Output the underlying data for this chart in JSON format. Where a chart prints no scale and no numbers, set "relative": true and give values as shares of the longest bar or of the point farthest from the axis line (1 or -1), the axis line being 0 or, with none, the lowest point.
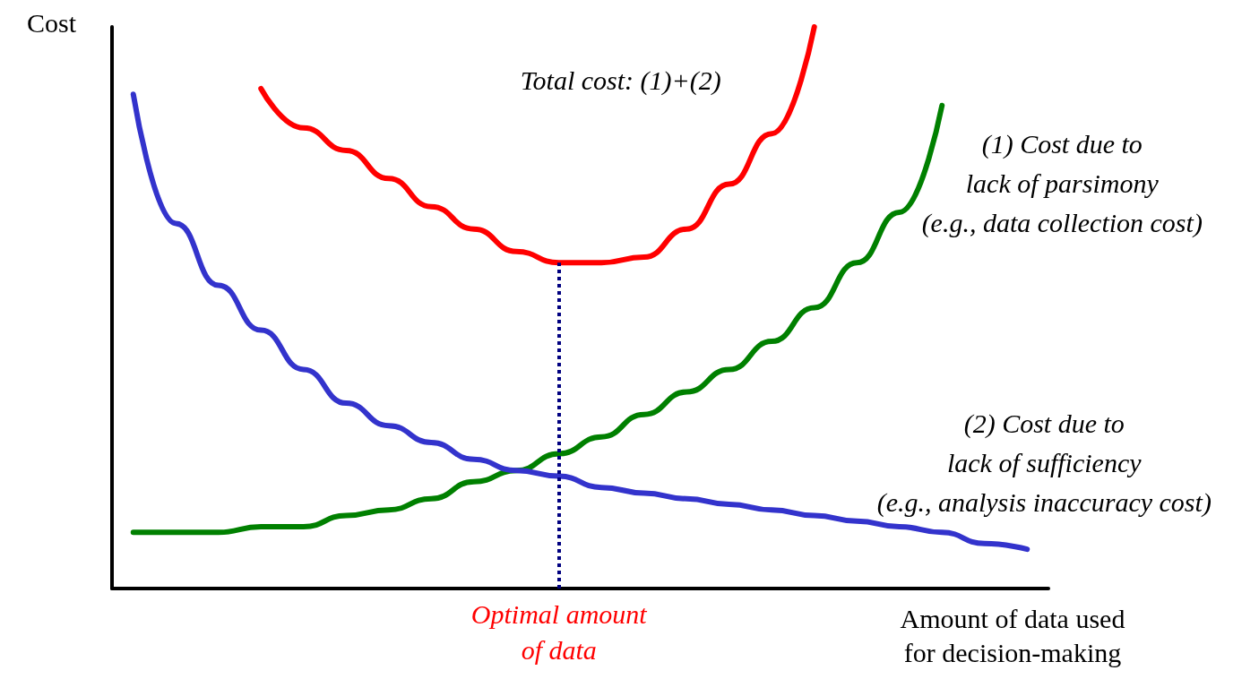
{
  "chart_data": {
    "type": "line",
    "relative": true,
    "ylabel": "Cost",
    "xlabel": "Amount of data used\nfor decision-making",
    "categories": [
      null,
      null,
      null,
      null,
      null,
      null,
      null,
      null,
      null,
      null,
      null,
      null,
      null,
      null,
      null,
      null,
      null,
      null,
      null,
      null,
      null,
      null
    ],
    "marker": "none",
    "grid": false,
    "series": [
      {
        "name": "Total cost: (1)+(2)",
        "color": "#ff0000",
        "values": [
          null,
          null,
          null,
          0.89,
          0.82,
          0.78,
          0.73,
          0.68,
          0.64,
          0.6,
          0.58,
          0.58,
          0.59,
          0.64,
          0.72,
          0.81,
          1.0,
          null,
          null,
          null,
          null,
          null
        ]
      },
      {
        "name": "(1) Cost due to\nlack of parsimony\n(e.g., data collection cost)",
        "color": "#008000",
        "values": [
          0.1,
          0.1,
          0.1,
          0.11,
          0.11,
          0.13,
          0.14,
          0.16,
          0.19,
          0.21,
          0.24,
          0.27,
          0.31,
          0.35,
          0.39,
          0.44,
          0.5,
          0.58,
          0.67,
          0.86,
          null,
          null
        ]
      },
      {
        "name": "(2) Cost due to\nlack of sufficiency\n(e.g., analysis inaccuracy cost)",
        "color": "#3333cc",
        "values": [
          0.88,
          0.65,
          0.54,
          0.46,
          0.39,
          0.33,
          0.29,
          0.26,
          0.23,
          0.21,
          0.2,
          0.18,
          0.17,
          0.16,
          0.15,
          0.14,
          0.13,
          0.12,
          0.11,
          0.1,
          0.08,
          0.07
        ]
      }
    ],
    "annotations": [
      "Optimal amount\nof data"
    ]
  }
}
